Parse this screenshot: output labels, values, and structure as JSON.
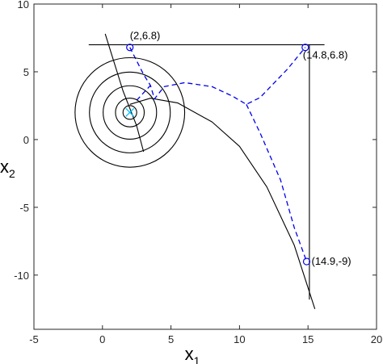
{
  "chart_data": {
    "type": "line",
    "xlim": [
      -5,
      20
    ],
    "ylim": [
      -14,
      10
    ],
    "xticks": [
      "-5",
      "0",
      "5",
      "10",
      "15",
      "20"
    ],
    "yticks": [
      "10",
      "5",
      "0",
      "-5",
      "-10"
    ],
    "xlabel": {
      "base": "x",
      "sub": "1"
    },
    "ylabel": {
      "base": "x",
      "sub": "2"
    },
    "grid": false,
    "legend": "none",
    "colors": {
      "solid": "#000000",
      "dashed": "#0000ee",
      "marker": "#0000ee",
      "target": "#00bfff"
    },
    "target": {
      "x": 2,
      "y": 2
    },
    "circles": {
      "center": [
        2,
        2
      ],
      "radii": [
        0.5,
        1.05,
        1.95,
        2.95,
        4.0
      ]
    },
    "points": [
      {
        "label": "(2,6.8)",
        "x": 2,
        "y": 6.8
      },
      {
        "label": "(14.8,6.8)",
        "x": 14.8,
        "y": 6.8
      },
      {
        "label": "(14.9,-9)",
        "x": 14.9,
        "y": -9
      }
    ],
    "series": [
      {
        "style": "solid",
        "x": [
          -1,
          16.2
        ],
        "y": [
          7.0,
          7.0
        ]
      },
      {
        "style": "solid",
        "x": [
          15.1,
          15.1
        ],
        "y": [
          7.0,
          -11.8
        ]
      },
      {
        "style": "solid",
        "x": [
          0.2,
          1.5,
          2.5,
          3.0
        ],
        "y": [
          7.8,
          3.6,
          1.0,
          -0.9
        ]
      },
      {
        "style": "solid",
        "x": [
          2.0,
          3.5,
          5.5,
          8.0,
          10.0,
          12.0,
          14.0,
          15.5
        ],
        "y": [
          2.6,
          3.05,
          2.7,
          1.3,
          -0.5,
          -3.5,
          -7.8,
          -12.5
        ]
      },
      {
        "style": "dashed",
        "x": [
          2.0,
          2.5,
          3.0,
          3.5,
          3.8,
          4.5,
          6.0,
          8.0,
          9.5,
          10.5,
          11.5,
          13.5,
          14.8
        ],
        "y": [
          6.8,
          5.8,
          4.8,
          4.0,
          3.0,
          3.9,
          4.2,
          3.9,
          3.2,
          2.6,
          3.1,
          5.2,
          6.8
        ]
      },
      {
        "style": "dashed",
        "x": [
          10.5,
          11.5,
          13.0,
          14.0,
          14.9
        ],
        "y": [
          2.6,
          0.5,
          -3.0,
          -6.5,
          -9.0
        ]
      },
      {
        "style": "dashed",
        "x": [
          2.5,
          3.5
        ],
        "y": [
          2.9,
          4.0
        ]
      }
    ]
  }
}
